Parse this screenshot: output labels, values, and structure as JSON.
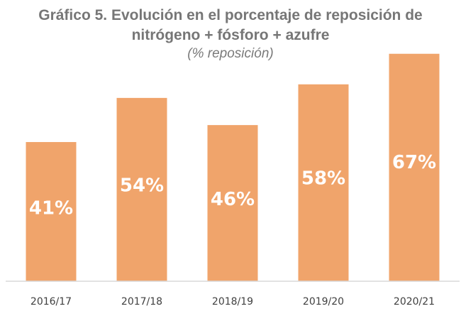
{
  "chart_data": {
    "type": "bar",
    "title": "Gráfico 5. Evolución en el porcentaje de reposición de nitrógeno + fósforo + azufre",
    "subtitle": "(% reposición)",
    "categories": [
      "2016/17",
      "2017/18",
      "2018/19",
      "2019/20",
      "2020/21"
    ],
    "values": [
      41,
      54,
      46,
      58,
      67
    ],
    "data_labels": [
      "41%",
      "54%",
      "46%",
      "58%",
      "67%"
    ],
    "ylim": [
      0,
      80
    ],
    "grid": false,
    "bar_color": "#f0a46b",
    "axis_color": "#d9d9d9"
  }
}
